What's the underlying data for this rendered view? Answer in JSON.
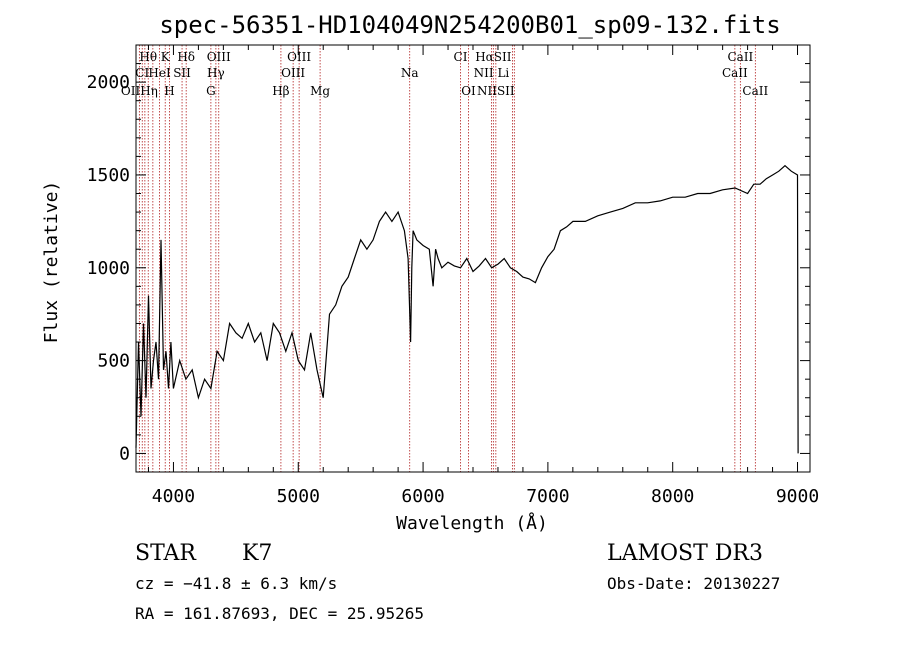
{
  "chart_data": {
    "type": "line",
    "title": "spec-56351-HD104049N254200B01_sp09-132.fits",
    "xlabel": "Wavelength (Å)",
    "ylabel": "Flux (relative)",
    "xlim": [
      3700,
      9100
    ],
    "ylim": [
      -100,
      2200
    ],
    "xticks": [
      4000,
      5000,
      6000,
      7000,
      8000,
      9000
    ],
    "yticks": [
      0,
      500,
      1000,
      1500,
      2000
    ],
    "xtick_labels": [
      "4000",
      "5000",
      "6000",
      "7000",
      "8000",
      "9000"
    ],
    "ytick_labels": [
      "0",
      "500",
      "1000",
      "1500",
      "2000"
    ],
    "series": [
      {
        "name": "flux",
        "x": [
          3700,
          3720,
          3740,
          3760,
          3780,
          3800,
          3820,
          3840,
          3860,
          3880,
          3900,
          3920,
          3940,
          3960,
          3980,
          4000,
          4050,
          4100,
          4150,
          4200,
          4250,
          4300,
          4350,
          4400,
          4450,
          4500,
          4550,
          4600,
          4650,
          4700,
          4750,
          4800,
          4850,
          4900,
          4950,
          5000,
          5050,
          5100,
          5150,
          5200,
          5250,
          5300,
          5350,
          5400,
          5450,
          5500,
          5550,
          5600,
          5650,
          5700,
          5750,
          5800,
          5850,
          5880,
          5900,
          5910,
          5920,
          5950,
          6000,
          6050,
          6080,
          6100,
          6120,
          6150,
          6200,
          6250,
          6300,
          6350,
          6400,
          6450,
          6500,
          6550,
          6600,
          6650,
          6700,
          6750,
          6800,
          6850,
          6900,
          6950,
          7000,
          7050,
          7100,
          7150,
          7200,
          7300,
          7400,
          7500,
          7600,
          7700,
          7800,
          7900,
          8000,
          8100,
          8200,
          8300,
          8400,
          8500,
          8600,
          8650,
          8700,
          8750,
          8800,
          8850,
          8900,
          8950,
          9000,
          9005
        ],
        "y": [
          30,
          600,
          200,
          700,
          300,
          850,
          350,
          500,
          600,
          400,
          1150,
          450,
          550,
          350,
          600,
          350,
          500,
          400,
          450,
          300,
          400,
          350,
          550,
          500,
          700,
          650,
          620,
          700,
          600,
          650,
          500,
          700,
          650,
          550,
          650,
          500,
          450,
          650,
          450,
          300,
          750,
          800,
          900,
          950,
          1050,
          1150,
          1100,
          1150,
          1250,
          1300,
          1250,
          1300,
          1200,
          1050,
          600,
          1000,
          1200,
          1150,
          1120,
          1100,
          900,
          1100,
          1050,
          1000,
          1030,
          1010,
          1000,
          1050,
          980,
          1010,
          1050,
          1000,
          1020,
          1050,
          1000,
          980,
          950,
          940,
          920,
          1000,
          1060,
          1100,
          1200,
          1220,
          1250,
          1250,
          1280,
          1300,
          1320,
          1350,
          1350,
          1360,
          1380,
          1380,
          1400,
          1400,
          1420,
          1430,
          1400,
          1450,
          1450,
          1480,
          1500,
          1520,
          1550,
          1520,
          1500,
          0
        ]
      }
    ],
    "spectral_lines": [
      {
        "label": "Hθ",
        "wavelength": 3798,
        "row": 1
      },
      {
        "label": "K",
        "wavelength": 3934,
        "row": 1
      },
      {
        "label": "Hδ",
        "wavelength": 4102,
        "row": 1
      },
      {
        "label": "OIII",
        "wavelength": 4363,
        "row": 1
      },
      {
        "label": "OIII",
        "wavelength": 5007,
        "row": 1
      },
      {
        "label": "CI",
        "wavelength": 6300,
        "row": 1
      },
      {
        "label": "HαSII",
        "wavelength": 6563,
        "row": 1
      },
      {
        "label": "CaII",
        "wavelength": 8542,
        "row": 1
      },
      {
        "label": "CI",
        "wavelength": 3750,
        "row": 2
      },
      {
        "label": "HeI",
        "wavelength": 3889,
        "row": 2
      },
      {
        "label": "SII",
        "wavelength": 4069,
        "row": 2
      },
      {
        "label": "Hγ",
        "wavelength": 4340,
        "row": 2
      },
      {
        "label": "OIII",
        "wavelength": 4959,
        "row": 2
      },
      {
        "label": "Na",
        "wavelength": 5893,
        "row": 2
      },
      {
        "label": "NII Li",
        "wavelength": 6548,
        "row": 2
      },
      {
        "label": "CaII",
        "wavelength": 8498,
        "row": 2
      },
      {
        "label": "OIIHη",
        "wavelength": 3727,
        "row": 3
      },
      {
        "label": "H",
        "wavelength": 3968,
        "row": 3
      },
      {
        "label": "G",
        "wavelength": 4300,
        "row": 3
      },
      {
        "label": "Hβ",
        "wavelength": 4861,
        "row": 3
      },
      {
        "label": "Mg",
        "wavelength": 5175,
        "row": 3
      },
      {
        "label": "OI",
        "wavelength": 6364,
        "row": 3
      },
      {
        "label": "NIISII",
        "wavelength": 6583,
        "row": 3
      },
      {
        "label": "CaII",
        "wavelength": 8662,
        "row": 3
      }
    ],
    "line_marker_wavelengths": [
      3727,
      3750,
      3771,
      3798,
      3835,
      3889,
      3934,
      3968,
      4069,
      4102,
      4300,
      4340,
      4363,
      4861,
      4959,
      5007,
      5175,
      5893,
      6300,
      6364,
      6548,
      6563,
      6583,
      6717,
      6731,
      8498,
      8542,
      8662
    ]
  },
  "footer": {
    "object_class": "STAR",
    "subclass": "K7",
    "cz": "cz = −41.8 ± 6.3 km/s",
    "coords": "RA = 161.87693, DEC =  25.95265",
    "survey": "LAMOST DR3",
    "obs_date": "Obs-Date: 20130227"
  }
}
